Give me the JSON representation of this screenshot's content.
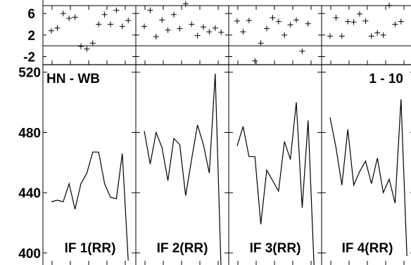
{
  "chart_data": [
    {
      "type": "scatter",
      "yticks": [
        6,
        2,
        -2
      ],
      "ylim": [
        -3.5,
        8.5
      ],
      "zero_line": true,
      "panels": [
        {
          "points": [
            [
              1,
              2.8
            ],
            [
              2,
              3.3
            ],
            [
              3,
              6
            ],
            [
              4,
              5.1
            ],
            [
              5,
              5.3
            ],
            [
              6,
              -0.1
            ],
            [
              7,
              -0.6
            ],
            [
              8,
              0.5
            ],
            [
              9,
              4
            ],
            [
              10,
              5.8
            ],
            [
              11,
              4
            ],
            [
              12,
              6.6
            ],
            [
              13,
              3.6
            ],
            [
              14,
              4.7
            ]
          ]
        },
        {
          "points": [
            [
              1,
              3.6
            ],
            [
              2,
              6.6
            ],
            [
              3,
              1.7
            ],
            [
              4,
              4.8
            ],
            [
              5,
              2.9
            ],
            [
              6,
              5.8
            ],
            [
              7,
              3.2
            ],
            [
              8,
              7.8
            ],
            [
              9,
              4
            ],
            [
              10,
              1.9
            ],
            [
              11,
              3.5
            ],
            [
              12,
              2.6
            ],
            [
              13,
              3.3
            ],
            [
              14,
              2.5
            ]
          ]
        },
        {
          "points": [
            [
              1,
              4.6
            ],
            [
              2,
              2.6
            ],
            [
              3,
              4.7
            ],
            [
              4,
              -2.8
            ],
            [
              5,
              0.5
            ],
            [
              6,
              3.2
            ],
            [
              7,
              5.2
            ],
            [
              8,
              4.5
            ],
            [
              9,
              2
            ],
            [
              10,
              3.9
            ],
            [
              11,
              4.8
            ],
            [
              12,
              -1
            ],
            [
              13,
              4.1
            ]
          ]
        },
        {
          "points": [
            [
              1,
              1.8
            ],
            [
              2,
              5.2
            ],
            [
              3,
              1.8
            ],
            [
              4,
              4.5
            ],
            [
              5,
              4.4
            ],
            [
              6,
              5.9
            ],
            [
              7,
              4.6
            ],
            [
              8,
              1.8
            ],
            [
              9,
              2.4
            ],
            [
              10,
              2
            ],
            [
              11,
              7.5
            ],
            [
              12,
              4
            ],
            [
              13,
              4.5
            ]
          ]
        }
      ]
    },
    {
      "type": "line",
      "yticks": [
        520,
        480,
        440,
        400
      ],
      "ylim": [
        392,
        525
      ],
      "title_left": "HN - WB",
      "title_right": "1 - 10",
      "panels": [
        {
          "label": "IF 1(RR)",
          "values": [
            434,
            435,
            434,
            446,
            429,
            446,
            453,
            467,
            467,
            446,
            437,
            436,
            466,
            395
          ]
        },
        {
          "label": "IF 2(RR)",
          "values": [
            481,
            459,
            480,
            470,
            448,
            476,
            472,
            438,
            462,
            485,
            472,
            453,
            519,
            388
          ]
        },
        {
          "label": "IF 3(RR)",
          "values": [
            471,
            484,
            464,
            464,
            419,
            455,
            448,
            441,
            474,
            462,
            500,
            430,
            488,
            392
          ]
        },
        {
          "label": "IF 4(RR)",
          "values": [
            490,
            470,
            445,
            482,
            445,
            454,
            461,
            446,
            463,
            440,
            449,
            433,
            502,
            398
          ]
        }
      ]
    }
  ]
}
